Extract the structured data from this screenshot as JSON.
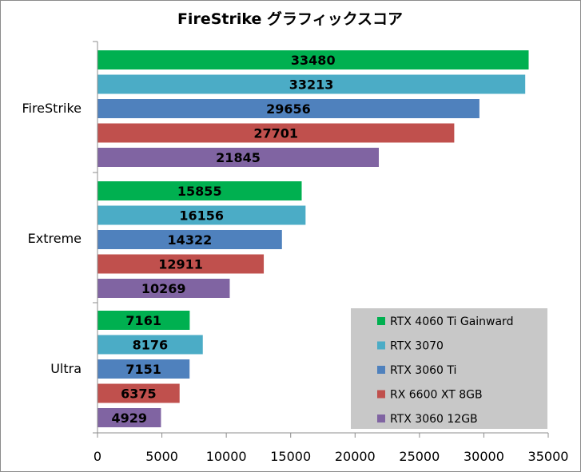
{
  "chart_data": {
    "type": "bar",
    "orientation": "horizontal",
    "title": "FireStrike グラフィックスコア",
    "categories": [
      "FireStrike",
      "Extreme",
      "Ultra"
    ],
    "series": [
      {
        "name": "RTX 4060 Ti Gainward",
        "color": "#00b050",
        "values": [
          33480,
          15855,
          7161
        ]
      },
      {
        "name": "RTX 3070",
        "color": "#4bacc6",
        "values": [
          33213,
          16156,
          8176
        ]
      },
      {
        "name": "RTX 3060 Ti",
        "color": "#4f81bd",
        "values": [
          29656,
          14322,
          7151
        ]
      },
      {
        "name": "RX 6600 XT 8GB",
        "color": "#c0504d",
        "values": [
          27701,
          12911,
          6375
        ]
      },
      {
        "name": "RTX 3060 12GB",
        "color": "#8064a2",
        "values": [
          21845,
          10269,
          4929
        ]
      }
    ],
    "xlim": [
      0,
      35000
    ],
    "xticks": [
      "0",
      "5000",
      "10000",
      "15000",
      "20000",
      "25000",
      "30000",
      "35000"
    ],
    "xlabel": "",
    "ylabel": "",
    "grid": false,
    "legend_position": "bottom-right",
    "legend_background": "#c8c8c8",
    "data_labels": true
  }
}
